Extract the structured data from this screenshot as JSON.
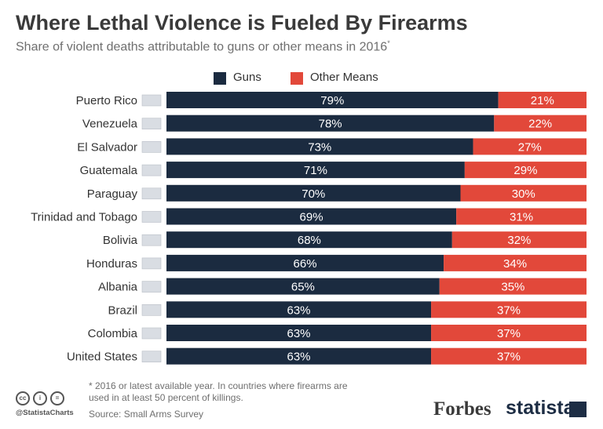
{
  "title": "Where Lethal Violence is Fueled By Firearms",
  "subtitle": "Share of violent deaths attributable to guns or other means in 2016",
  "subtitle_marker": "*",
  "colors": {
    "guns": "#1b2b40",
    "other": "#e2483a"
  },
  "footnote": "* 2016 or latest available year. In countries where firearms are used in at least 50 percent of killings.",
  "source": "Source: Small Arms Survey",
  "handle": "@StatistaCharts",
  "brands": {
    "forbes": "Forbes",
    "statista": "statista"
  },
  "chart_data": {
    "type": "bar",
    "orientation": "horizontal",
    "stacked": true,
    "categories": [
      "Puerto Rico",
      "Venezuela",
      "El Salvador",
      "Guatemala",
      "Paraguay",
      "Trinidad and Tobago",
      "Bolivia",
      "Honduras",
      "Albania",
      "Brazil",
      "Colombia",
      "United States"
    ],
    "series": [
      {
        "name": "Guns",
        "values": [
          79,
          78,
          73,
          71,
          70,
          69,
          68,
          66,
          65,
          63,
          63,
          63
        ]
      },
      {
        "name": "Other Means",
        "values": [
          21,
          22,
          27,
          29,
          30,
          31,
          32,
          34,
          35,
          37,
          37,
          37
        ]
      }
    ],
    "unit": "%",
    "xlim": [
      0,
      100
    ],
    "legend_position": "top"
  }
}
